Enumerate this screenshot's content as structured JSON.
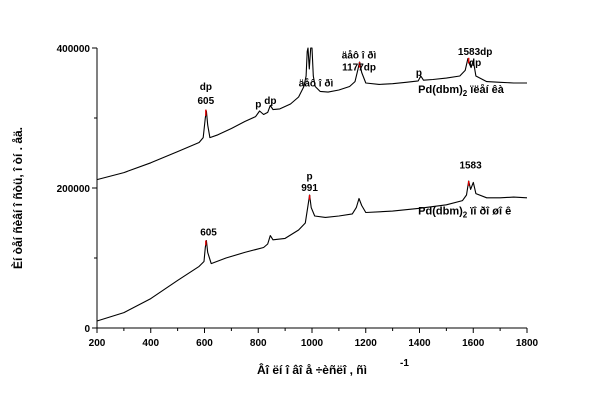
{
  "chart_data": {
    "type": "line",
    "xlabel": "Âî ëí î âî å ÷èñëî , ñì",
    "xlabel_superscript": "-1",
    "ylabel": "Èí òåí ñèâí î ñòü, î òí . åä.",
    "xlim": [
      200,
      1800
    ],
    "ylim": [
      0,
      400000
    ],
    "x_ticks": [
      200,
      400,
      600,
      800,
      1000,
      1200,
      1400,
      1600,
      1800
    ],
    "y_ticks": [
      0,
      200000,
      400000
    ],
    "grid": false,
    "legend": "none",
    "series": [
      {
        "name": "Pd(dbm)2 ïëåí êà",
        "label_main": "Pd(dbm)",
        "label_sub": "2",
        "label_rest": " ïëåí êà",
        "color": "#000000",
        "points": [
          [
            200,
            212000
          ],
          [
            300,
            222000
          ],
          [
            400,
            236000
          ],
          [
            500,
            252000
          ],
          [
            580,
            265000
          ],
          [
            595,
            272000
          ],
          [
            603,
            300000
          ],
          [
            607,
            310000
          ],
          [
            612,
            290000
          ],
          [
            620,
            272000
          ],
          [
            650,
            276000
          ],
          [
            700,
            285000
          ],
          [
            750,
            295000
          ],
          [
            790,
            302000
          ],
          [
            805,
            310000
          ],
          [
            820,
            305000
          ],
          [
            835,
            308000
          ],
          [
            845,
            318000
          ],
          [
            855,
            312000
          ],
          [
            880,
            313000
          ],
          [
            920,
            320000
          ],
          [
            950,
            330000
          ],
          [
            970,
            345000
          ],
          [
            978,
            360000
          ],
          [
            982,
            395000
          ],
          [
            985,
            400000
          ],
          [
            990,
            370000
          ],
          [
            995,
            400000
          ],
          [
            1000,
            400000
          ],
          [
            1005,
            360000
          ],
          [
            1012,
            345000
          ],
          [
            1030,
            338000
          ],
          [
            1060,
            337000
          ],
          [
            1100,
            340000
          ],
          [
            1140,
            345000
          ],
          [
            1160,
            352000
          ],
          [
            1170,
            368000
          ],
          [
            1177,
            380000
          ],
          [
            1185,
            365000
          ],
          [
            1200,
            350000
          ],
          [
            1250,
            348000
          ],
          [
            1300,
            349000
          ],
          [
            1350,
            351000
          ],
          [
            1395,
            353000
          ],
          [
            1405,
            360000
          ],
          [
            1415,
            354000
          ],
          [
            1450,
            355000
          ],
          [
            1500,
            357000
          ],
          [
            1550,
            360000
          ],
          [
            1570,
            368000
          ],
          [
            1580,
            385000
          ],
          [
            1585,
            378000
          ],
          [
            1592,
            372000
          ],
          [
            1600,
            382000
          ],
          [
            1610,
            360000
          ],
          [
            1650,
            352000
          ],
          [
            1700,
            351000
          ],
          [
            1750,
            350000
          ],
          [
            1800,
            350000
          ]
        ]
      },
      {
        "name": "Pd(dbm)2 ïî ðî øî ê",
        "label_main": "Pd(dbm)",
        "label_sub": "2",
        "label_rest": " ïî ðî øî ê",
        "color": "#000000",
        "points": [
          [
            200,
            10000
          ],
          [
            300,
            22000
          ],
          [
            400,
            42000
          ],
          [
            500,
            68000
          ],
          [
            580,
            88000
          ],
          [
            598,
            95000
          ],
          [
            603,
            115000
          ],
          [
            607,
            125000
          ],
          [
            612,
            108000
          ],
          [
            625,
            92000
          ],
          [
            680,
            100000
          ],
          [
            750,
            108000
          ],
          [
            820,
            115000
          ],
          [
            835,
            120000
          ],
          [
            845,
            132000
          ],
          [
            855,
            126000
          ],
          [
            900,
            128000
          ],
          [
            950,
            140000
          ],
          [
            975,
            150000
          ],
          [
            985,
            175000
          ],
          [
            991,
            190000
          ],
          [
            997,
            172000
          ],
          [
            1010,
            160000
          ],
          [
            1050,
            158000
          ],
          [
            1100,
            160000
          ],
          [
            1150,
            163000
          ],
          [
            1165,
            172000
          ],
          [
            1175,
            185000
          ],
          [
            1185,
            175000
          ],
          [
            1200,
            165000
          ],
          [
            1300,
            167000
          ],
          [
            1400,
            171000
          ],
          [
            1500,
            176000
          ],
          [
            1560,
            182000
          ],
          [
            1575,
            190000
          ],
          [
            1583,
            210000
          ],
          [
            1590,
            198000
          ],
          [
            1600,
            208000
          ],
          [
            1610,
            192000
          ],
          [
            1650,
            186000
          ],
          [
            1700,
            186000
          ],
          [
            1750,
            187000
          ],
          [
            1800,
            186000
          ]
        ]
      }
    ],
    "annotations": [
      {
        "text": "dp",
        "x": 605,
        "y": 340000
      },
      {
        "text": "605",
        "x": 605,
        "y": 320000
      },
      {
        "text": "p",
        "x": 800,
        "y": 315000
      },
      {
        "text": "dp",
        "x": 845,
        "y": 320000
      },
      {
        "text": "äåô î ðì",
        "x": 1015,
        "y": 345000
      },
      {
        "text": "äåô î ðì",
        "x": 1175,
        "y": 385000
      },
      {
        "text": "1177dp",
        "x": 1175,
        "y": 368000
      },
      {
        "text": "p",
        "x": 1398,
        "y": 360000
      },
      {
        "text": "1583dp",
        "x": 1607,
        "y": 390000
      },
      {
        "text": "dp",
        "x": 1607,
        "y": 374000
      },
      {
        "text": "p",
        "x": 991,
        "y": 212000
      },
      {
        "text": "991",
        "x": 991,
        "y": 196000
      },
      {
        "text": "605",
        "x": 615,
        "y": 132000
      },
      {
        "text": "1583",
        "x": 1590,
        "y": 228000
      }
    ],
    "red_markers": [
      {
        "x": 605,
        "y1": 303000,
        "y2": 312000
      },
      {
        "x": 1177,
        "y1": 372000,
        "y2": 380000
      },
      {
        "x": 1583,
        "y1": 378000,
        "y2": 386000
      },
      {
        "x": 991,
        "y1": 183000,
        "y2": 190000
      },
      {
        "x": 605,
        "y1": 118000,
        "y2": 125000
      },
      {
        "x": 1583,
        "y1": 203000,
        "y2": 210000
      }
    ],
    "series_labels": [
      {
        "series": 0,
        "x": 1395,
        "y": 336000
      },
      {
        "series": 1,
        "x": 1395,
        "y": 162000
      }
    ]
  }
}
